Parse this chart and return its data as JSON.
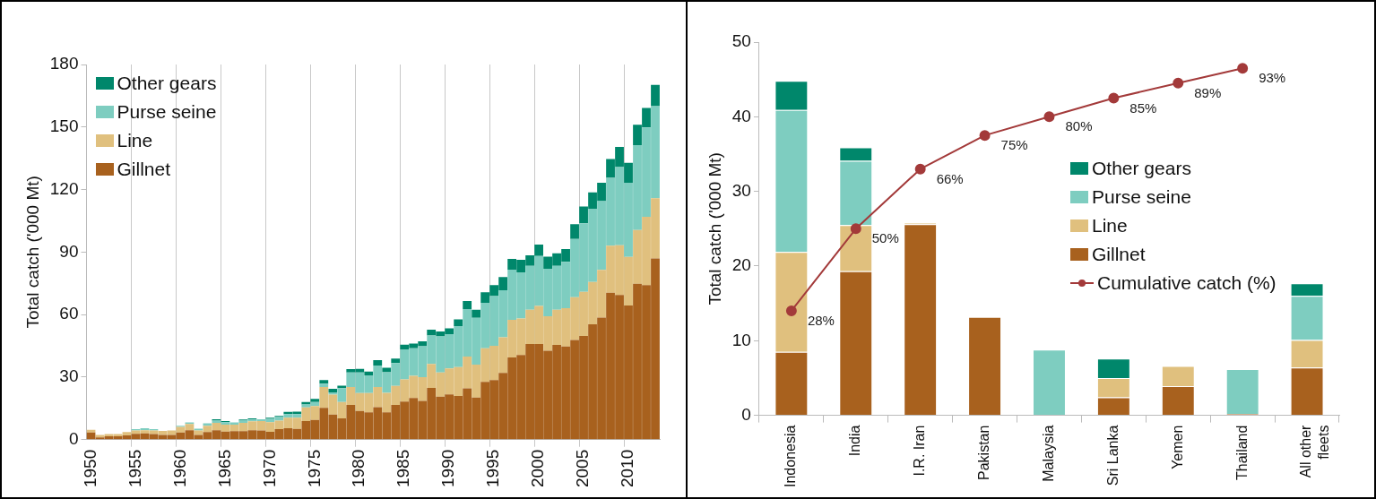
{
  "chart_data": [
    {
      "type": "bar",
      "ylabel": "Total catch ('000 Mt)",
      "stacked": true,
      "grid": "x",
      "legend": "top left",
      "ylim": [
        0,
        180
      ],
      "yticks": [
        0,
        30,
        60,
        90,
        120,
        150,
        180
      ],
      "categories": [
        "1950",
        null,
        null,
        null,
        null,
        "1955",
        null,
        null,
        null,
        null,
        "1960",
        null,
        null,
        null,
        null,
        "1965",
        null,
        null,
        null,
        null,
        "1970",
        null,
        null,
        null,
        null,
        "1975",
        null,
        null,
        null,
        null,
        "1980",
        null,
        null,
        null,
        null,
        "1985",
        null,
        null,
        null,
        null,
        "1990",
        null,
        null,
        null,
        null,
        "1995",
        null,
        null,
        null,
        null,
        "2000",
        null,
        null,
        null,
        null,
        "2005",
        null,
        null,
        null,
        null,
        "2010",
        null,
        null,
        null
      ],
      "series": [
        {
          "name": "Gillnet",
          "color": "#a8611e",
          "values": [
            3.4,
            1.1,
            1.6,
            1.6,
            2.0,
            2.8,
            3.0,
            2.7,
            2.3,
            2.3,
            3.4,
            4.5,
            2.3,
            3.6,
            4.5,
            3.9,
            4.1,
            4.1,
            4.5,
            4.4,
            3.8,
            5.0,
            5.5,
            5.2,
            8.9,
            9.4,
            15.2,
            12.0,
            10.2,
            16.7,
            13.8,
            13.1,
            15.6,
            13.1,
            16.7,
            18.3,
            20.0,
            18.6,
            24.8,
            20.6,
            21.7,
            20.9,
            24.6,
            20.2,
            27.7,
            28.6,
            32.0,
            39.4,
            40.6,
            45.9,
            45.9,
            42.7,
            45.5,
            44.7,
            47.8,
            49.8,
            55.3,
            58.6,
            70.5,
            69.4,
            64.4,
            74.8,
            74.1,
            86.9
          ]
        },
        {
          "name": "Line",
          "color": "#e0c07e",
          "values": [
            1.3,
            1.2,
            1.1,
            1.1,
            1.7,
            1.6,
            1.5,
            1.7,
            1.9,
            2.1,
            2.7,
            3.0,
            2.1,
            3.1,
            3.5,
            3.3,
            3.1,
            4.0,
            4.3,
            4.5,
            4.6,
            4.1,
            5.0,
            5.3,
            6.6,
            6.7,
            10.1,
            9.6,
            7.8,
            8.6,
            8.5,
            9.2,
            9.7,
            9.4,
            9.1,
            10.6,
            10.6,
            11.4,
            11.5,
            11.6,
            12.5,
            13.9,
            15.3,
            15.8,
            16.1,
            16.4,
            17.1,
            18.1,
            17.5,
            16.4,
            18.3,
            16.5,
            16.8,
            18.4,
            20.5,
            21.1,
            20.3,
            22.8,
            22.6,
            23.9,
            23.3,
            25.8,
            32.8,
            28.9
          ]
        },
        {
          "name": "Purse seine",
          "color": "#7ecdc0",
          "values": [
            0,
            0,
            0,
            0,
            0,
            0.6,
            1.0,
            0.6,
            0,
            0,
            0.6,
            0.8,
            0.9,
            1.1,
            1.1,
            1.2,
            1.1,
            1.0,
            0.9,
            0.9,
            1.6,
            1.7,
            1.7,
            1.7,
            1.4,
            2.0,
            1.6,
            1.1,
            6.7,
            6.9,
            9.9,
            8.5,
            10.3,
            9.8,
            10.9,
            14.4,
            13.2,
            14.8,
            13.7,
            17.3,
            16.4,
            19.7,
            22.7,
            22.5,
            21.9,
            23.9,
            22.6,
            24.1,
            22.2,
            21.1,
            23.9,
            22.8,
            21.1,
            22.2,
            28.0,
            32.9,
            35.2,
            33.0,
            32.5,
            37.5,
            35.6,
            40.7,
            42.9,
            44.2
          ]
        },
        {
          "name": "Other gears",
          "color": "#00876b",
          "values": [
            0,
            0,
            0,
            0,
            0,
            0,
            0,
            0,
            0,
            0,
            0,
            0,
            0,
            0,
            0.7,
            0.5,
            0,
            0.6,
            0.5,
            0,
            0.5,
            0.6,
            1.1,
            1.2,
            1.2,
            1.4,
            1.7,
            1.7,
            1.2,
            1.6,
            1.7,
            1.9,
            2.5,
            2.2,
            2.2,
            2.3,
            2.3,
            2.4,
            2.8,
            2.4,
            2.8,
            3.2,
            3.9,
            3.8,
            5.0,
            5.2,
            6.3,
            5.1,
            6.0,
            5.0,
            5.5,
            5.8,
            6.0,
            6.1,
            7.1,
            8.1,
            7.8,
            8.9,
            9.1,
            9.7,
            9.5,
            9.8,
            9.4,
            10.2
          ]
        }
      ]
    },
    {
      "type": "bar",
      "ylabel": "Total catch ('000 Mt)",
      "stacked": true,
      "legend": "right",
      "ylim": [
        0,
        50
      ],
      "yticks": [
        0,
        10,
        20,
        30,
        40,
        50
      ],
      "y2lim": [
        0,
        100
      ],
      "tick_labels": "xy",
      "marker": "circle",
      "categories": [
        "Indonesia",
        "India",
        "I.R. Iran",
        "Pakistan",
        "Malaysia",
        "Sri Lanka",
        "Yemen",
        "Thailand",
        "All other fleets"
      ],
      "series": [
        {
          "name": "Gillnet",
          "color": "#a8611e",
          "values": [
            8.5,
            19.3,
            25.6,
            13.2,
            0,
            2.4,
            3.9,
            0.2,
            6.4
          ]
        },
        {
          "name": "Line",
          "color": "#e0c07e",
          "values": [
            13.4,
            6.2,
            0.2,
            0,
            0,
            2.6,
            2.7,
            0,
            3.7
          ]
        },
        {
          "name": "Purse seine",
          "color": "#7ecdc0",
          "values": [
            19.0,
            8.6,
            0,
            0,
            8.8,
            0,
            0,
            6.0,
            5.9
          ]
        },
        {
          "name": "Other gears",
          "color": "#00876b",
          "values": [
            3.9,
            1.8,
            0,
            0,
            0,
            2.6,
            0,
            0,
            1.7
          ]
        },
        {
          "name": "Cumulative catch (%)",
          "type": "line",
          "axis": "y2",
          "color": "#a33a3a",
          "values": [
            28,
            50,
            66,
            75,
            80,
            85,
            89,
            93,
            null
          ],
          "value_labels": [
            "28%",
            "50%",
            "66%",
            "75%",
            "80%",
            "85%",
            "89%",
            "93%",
            null
          ]
        }
      ]
    }
  ]
}
